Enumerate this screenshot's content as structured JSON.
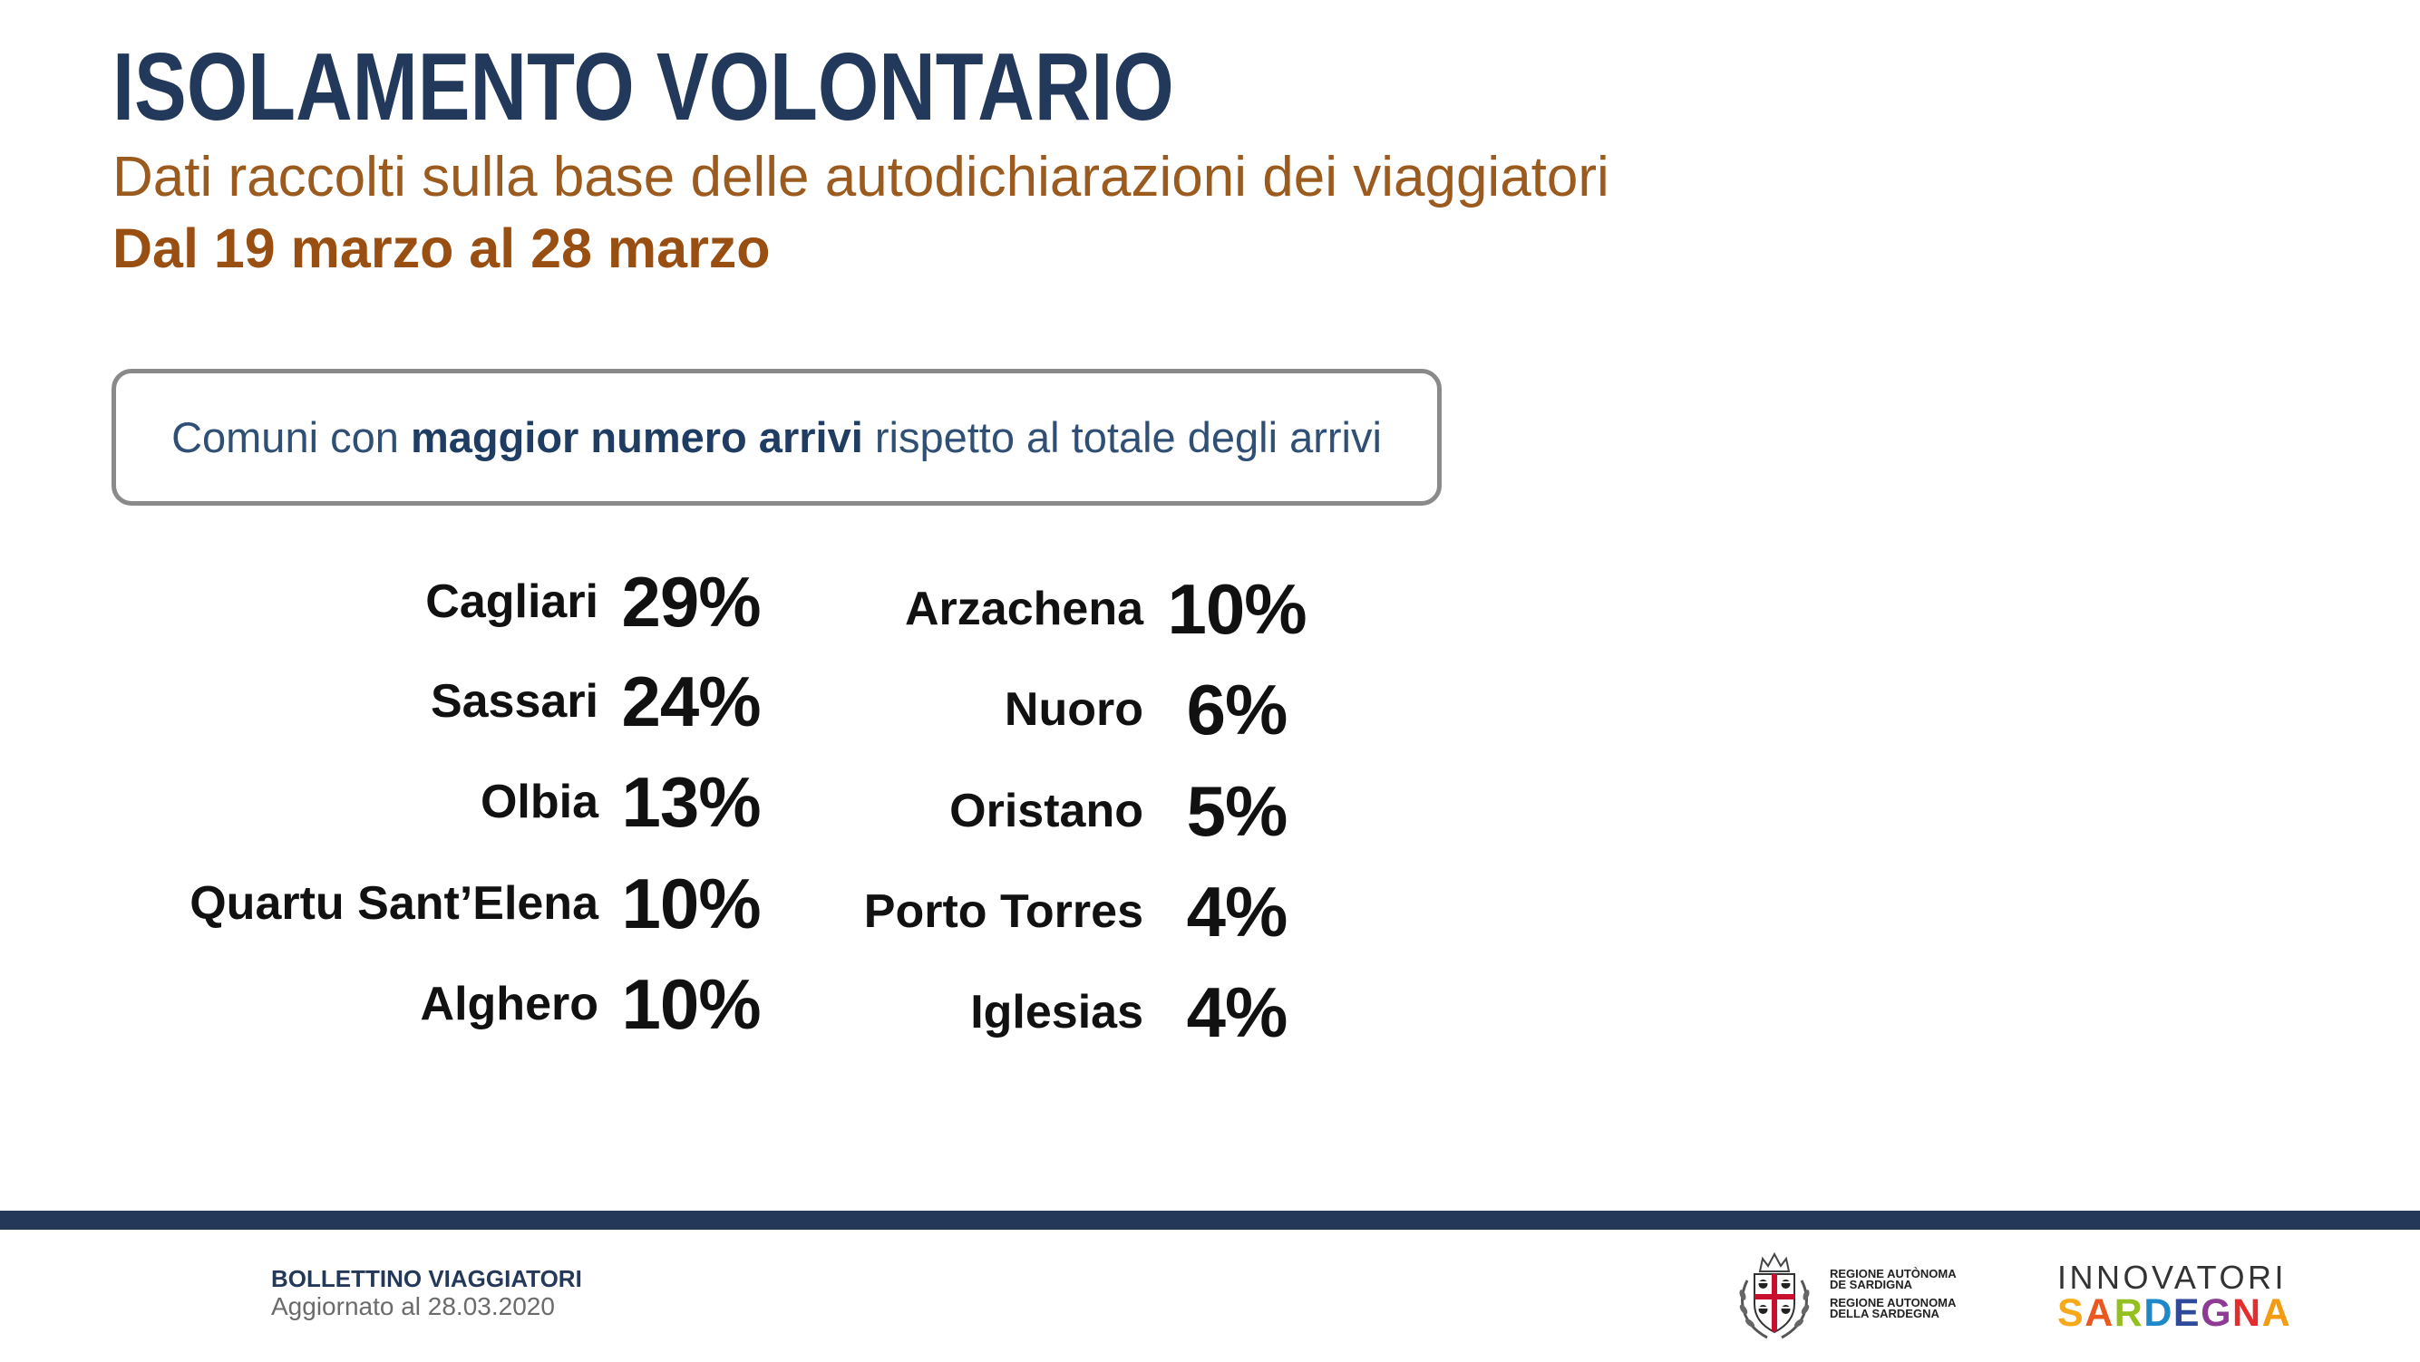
{
  "header": {
    "title": "ISOLAMENTO VOLONTARIO",
    "subtitle": "Dati raccolti sulla base delle autodichiarazioni dei viaggiatori",
    "period": "Dal 19 marzo al 28 marzo"
  },
  "callout": {
    "prefix": "Comuni con",
    "highlight": "maggior numero arrivi",
    "suffix": "rispetto al totale degli arrivi"
  },
  "stats": {
    "left": [
      {
        "name": "Cagliari",
        "value": "29%"
      },
      {
        "name": "Sassari",
        "value": "24%"
      },
      {
        "name": "Olbia",
        "value": "13%"
      },
      {
        "name": "Quartu Sant’Elena",
        "value": "10%"
      },
      {
        "name": "Alghero",
        "value": "10%"
      }
    ],
    "right": [
      {
        "name": "Arzachena",
        "value": "10%"
      },
      {
        "name": "Nuoro",
        "value": "6%"
      },
      {
        "name": "Oristano",
        "value": "5%"
      },
      {
        "name": "Porto Torres",
        "value": "4%"
      },
      {
        "name": "Iglesias",
        "value": "4%"
      }
    ]
  },
  "footer": {
    "bulletin_title": "BOLLETTINO VIAGGIATORI",
    "updated": "Aggiornato al 28.03.2020",
    "region_logo": {
      "icon": "regione-sardegna-emblem-icon",
      "lines": [
        "REGIONE AUTÒNOMA",
        "DE SARDIGNA",
        "REGIONE AUTONOMA",
        "DELLA SARDEGNA"
      ]
    },
    "innovatori_logo": {
      "top": "INNOVATORI",
      "letters": [
        {
          "char": "S",
          "color": "#f6a91b"
        },
        {
          "char": "A",
          "color": "#e9591f"
        },
        {
          "char": "R",
          "color": "#93c01f"
        },
        {
          "char": "D",
          "color": "#1e88c9"
        },
        {
          "char": "E",
          "color": "#2f4a9b"
        },
        {
          "char": "G",
          "color": "#8e3b96"
        },
        {
          "char": "N",
          "color": "#e52d2d"
        },
        {
          "char": "A",
          "color": "#f39c12"
        }
      ]
    }
  },
  "theme": {
    "title": "#22395b",
    "subtitle": "#9b5a1e",
    "period": "#9a4f12",
    "box_border": "#8a8a8a",
    "callout_text": "#2f4f75",
    "callout_highlight": "#1f3d63",
    "stat_text": "#111111",
    "footer_bar": "#24395a",
    "bulletin_title": "#24395a",
    "updated_text": "#6b6b6b"
  }
}
